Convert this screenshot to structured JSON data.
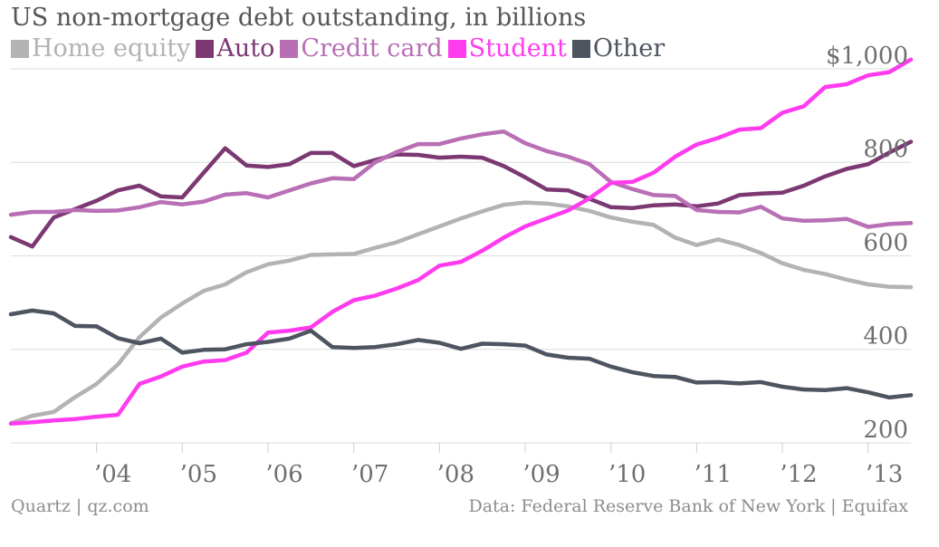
{
  "chart_data": {
    "type": "line",
    "title": "US non-mortgage debt outstanding, in billions",
    "xlabel": "",
    "ylabel": "",
    "x_tick_labels": [
      "’04",
      "’05",
      "’06",
      "’07",
      "’08",
      "’09",
      "’10",
      "’11",
      "’12",
      "’13"
    ],
    "y_tick_labels": [
      "200",
      "400",
      "600",
      "800",
      "$1,000"
    ],
    "y_ticks": [
      200,
      400,
      600,
      800,
      1000
    ],
    "ylim": [
      200,
      1060
    ],
    "xlim": [
      "2003 Q1",
      "2013 Q3"
    ],
    "grid": true,
    "legend_position": "top-left",
    "x": [
      "2003 Q1",
      "2003 Q2",
      "2003 Q3",
      "2003 Q4",
      "2004 Q1",
      "2004 Q2",
      "2004 Q3",
      "2004 Q4",
      "2005 Q1",
      "2005 Q2",
      "2005 Q3",
      "2005 Q4",
      "2006 Q1",
      "2006 Q2",
      "2006 Q3",
      "2006 Q4",
      "2007 Q1",
      "2007 Q2",
      "2007 Q3",
      "2007 Q4",
      "2008 Q1",
      "2008 Q2",
      "2008 Q3",
      "2008 Q4",
      "2009 Q1",
      "2009 Q2",
      "2009 Q3",
      "2009 Q4",
      "2010 Q1",
      "2010 Q2",
      "2010 Q3",
      "2010 Q4",
      "2011 Q1",
      "2011 Q2",
      "2011 Q3",
      "2011 Q4",
      "2012 Q1",
      "2012 Q2",
      "2012 Q3",
      "2012 Q4",
      "2013 Q1",
      "2013 Q2",
      "2013 Q3"
    ],
    "series": [
      {
        "name": "Home equity",
        "color": "#b3b3b3",
        "values": [
          242,
          258,
          266,
          298,
          326,
          368,
          426,
          468,
          498,
          525,
          539,
          565,
          582,
          590,
          602,
          603,
          604,
          617,
          629,
          646,
          663,
          680,
          695,
          709,
          714,
          712,
          706,
          696,
          682,
          673,
          666,
          639,
          623,
          635,
          623,
          606,
          584,
          570,
          561,
          549,
          539,
          534,
          533
        ]
      },
      {
        "name": "Auto",
        "color": "#7b3872",
        "values": [
          640,
          620,
          682,
          700,
          718,
          740,
          750,
          727,
          725,
          778,
          830,
          793,
          790,
          796,
          820,
          820,
          792,
          805,
          817,
          816,
          810,
          812,
          810,
          792,
          768,
          742,
          740,
          722,
          704,
          702,
          708,
          710,
          706,
          712,
          730,
          733,
          735,
          750,
          770,
          786,
          796,
          821,
          844
        ]
      },
      {
        "name": "Credit card",
        "color": "#b86fb5",
        "values": [
          688,
          694,
          694,
          698,
          696,
          697,
          704,
          715,
          710,
          716,
          731,
          734,
          725,
          740,
          755,
          766,
          764,
          800,
          822,
          839,
          839,
          851,
          860,
          866,
          841,
          824,
          812,
          796,
          758,
          743,
          730,
          728,
          698,
          694,
          693,
          705,
          680,
          675,
          676,
          679,
          662,
          668,
          670
        ]
      },
      {
        "name": "Student",
        "color": "#ff3bef",
        "values": [
          241,
          244,
          248,
          251,
          256,
          260,
          326,
          342,
          363,
          374,
          377,
          393,
          436,
          440,
          447,
          480,
          505,
          515,
          530,
          548,
          579,
          587,
          611,
          639,
          663,
          680,
          697,
          723,
          756,
          758,
          778,
          812,
          838,
          852,
          870,
          873,
          906,
          920,
          961,
          967,
          986,
          993,
          1020
        ]
      },
      {
        "name": "Other",
        "color": "#4d5560",
        "values": [
          475,
          483,
          477,
          450,
          449,
          424,
          413,
          423,
          393,
          399,
          400,
          411,
          416,
          423,
          440,
          405,
          403,
          405,
          411,
          420,
          414,
          401,
          412,
          411,
          408,
          389,
          382,
          380,
          363,
          351,
          343,
          341,
          329,
          330,
          327,
          330,
          320,
          314,
          313,
          317,
          308,
          297,
          302
        ]
      }
    ]
  },
  "footer": {
    "source_left": "Quartz | qz.com",
    "source_right": "Data: Federal Reserve Bank of New York | Equifax"
  }
}
